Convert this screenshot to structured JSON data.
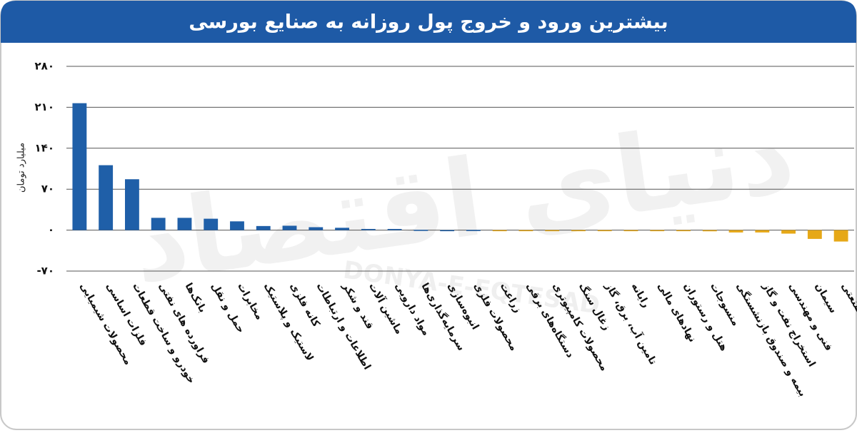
{
  "chart_data": {
    "type": "bar",
    "title": "بیشترین ورود و خروج پول روزانه به صنایع بورسی",
    "y_label": "میلیارد تومان",
    "watermark": "دنیای اقتصاد",
    "watermark_latin": "DONYA-E-EQTESAD",
    "categories": [
      "محصولات شیمیایی",
      "فلزات اساسی",
      "خودرو و ساخت قطعات",
      "فراورده های نفتی",
      "بانک‌ها",
      "حمل و نقل",
      "مخابرات",
      "لاستیک و پلاستیک",
      "کانه فلزی",
      "اطلاعات و ارتباطات",
      "قند و شکر",
      "ماشین آلات",
      "مواد دارویی",
      "سرمایه‌گذاری‌ها",
      "انبوه‌سازی",
      "محصولات فلزی",
      "زراعت",
      "دستگاه‌های برقی",
      "محصولات کامپیوتری",
      "زغال سنگ",
      "تامین آب، برق، گاز",
      "رایانه",
      "نهادهای مالی",
      "هتل و رستوران",
      "منسوجات",
      "بیمه و صندوق بازنشستگی",
      "استخراج نفت و گاز",
      "فنی و مهندسی",
      "سیمان",
      "چند رشته‌ای صنعتی"
    ],
    "values": [
      217,
      111,
      87,
      21,
      21,
      19.5,
      15,
      7,
      7.5,
      5,
      4,
      2,
      2,
      0.5,
      0,
      0.3,
      -0.3,
      -1,
      -1,
      -1,
      -1,
      -1,
      -1,
      -1,
      -2,
      -4,
      -4,
      -6,
      -15,
      -19.5
    ],
    "color": "#1f5fa8",
    "negative_color": "#e6a817",
    "ylim": [
      -70,
      280
    ],
    "yticks": [
      {
        "value": -70,
        "label": "-۷۰"
      },
      {
        "value": 0,
        "label": "۰"
      },
      {
        "value": 70,
        "label": "۷۰"
      },
      {
        "value": 140,
        "label": "۱۴۰"
      },
      {
        "value": 210,
        "label": "۲۱۰"
      },
      {
        "value": 280,
        "label": "۲۸۰"
      }
    ],
    "grid": true
  }
}
